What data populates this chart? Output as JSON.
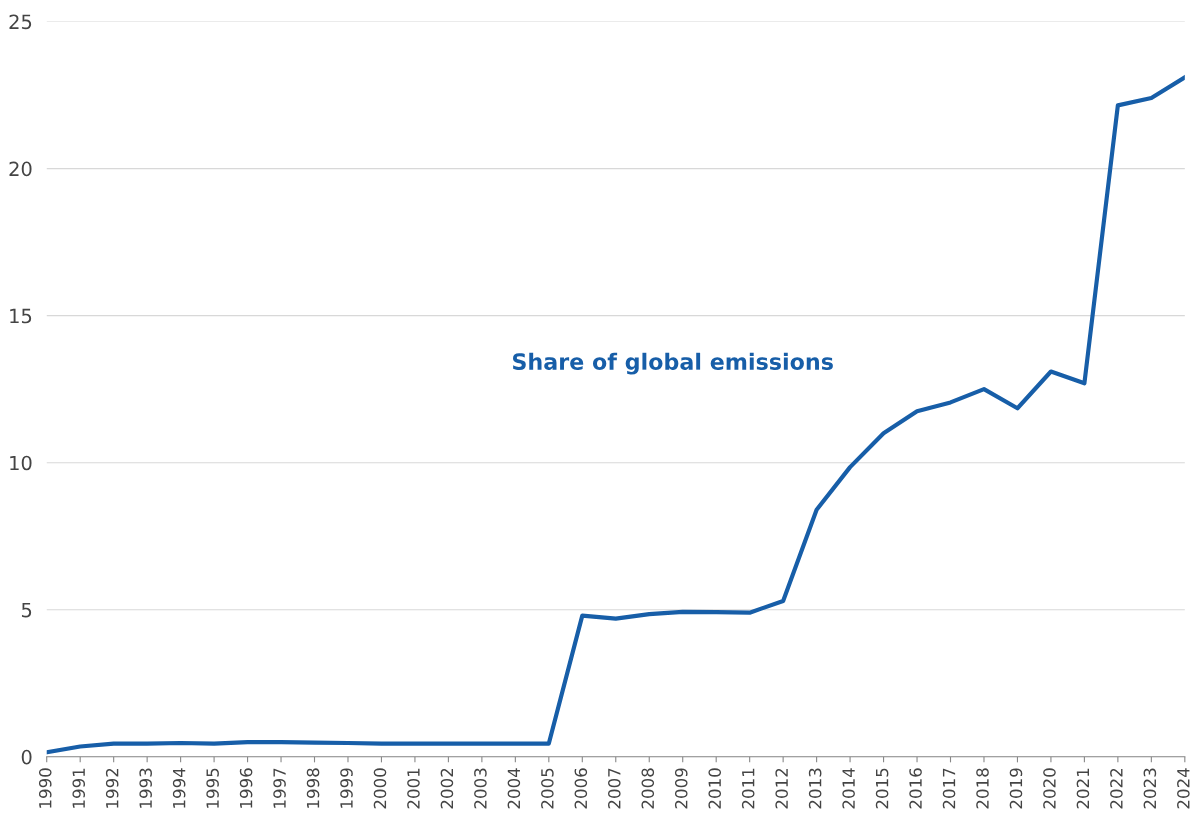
{
  "chart_data": {
    "type": "line",
    "categories": [
      "1990",
      "1991",
      "1992",
      "1993",
      "1994",
      "1995",
      "1996",
      "1997",
      "1998",
      "1999",
      "2000",
      "2001",
      "2002",
      "2003",
      "2004",
      "2005",
      "2006",
      "2007",
      "2008",
      "2009",
      "2010",
      "2011",
      "2012",
      "2013",
      "2014",
      "2015",
      "2016",
      "2017",
      "2018",
      "2019",
      "2020",
      "2021",
      "2022",
      "2023",
      "2024"
    ],
    "series": [
      {
        "name": "Share of global emissions",
        "color": "#175ea8",
        "values": [
          0.15,
          0.35,
          0.45,
          0.45,
          0.47,
          0.45,
          0.5,
          0.5,
          0.48,
          0.47,
          0.45,
          0.45,
          0.45,
          0.45,
          0.45,
          0.45,
          4.8,
          4.7,
          4.85,
          4.93,
          4.92,
          4.9,
          5.3,
          8.4,
          9.85,
          11.0,
          11.75,
          12.05,
          12.5,
          11.85,
          13.1,
          12.7,
          22.15,
          22.4,
          23.1
        ]
      }
    ],
    "ylim": [
      0,
      25
    ],
    "yticks": [
      0,
      5,
      10,
      15,
      20,
      25
    ],
    "grid": "y",
    "marker": "none",
    "line_style": "solid",
    "legend": false
  }
}
